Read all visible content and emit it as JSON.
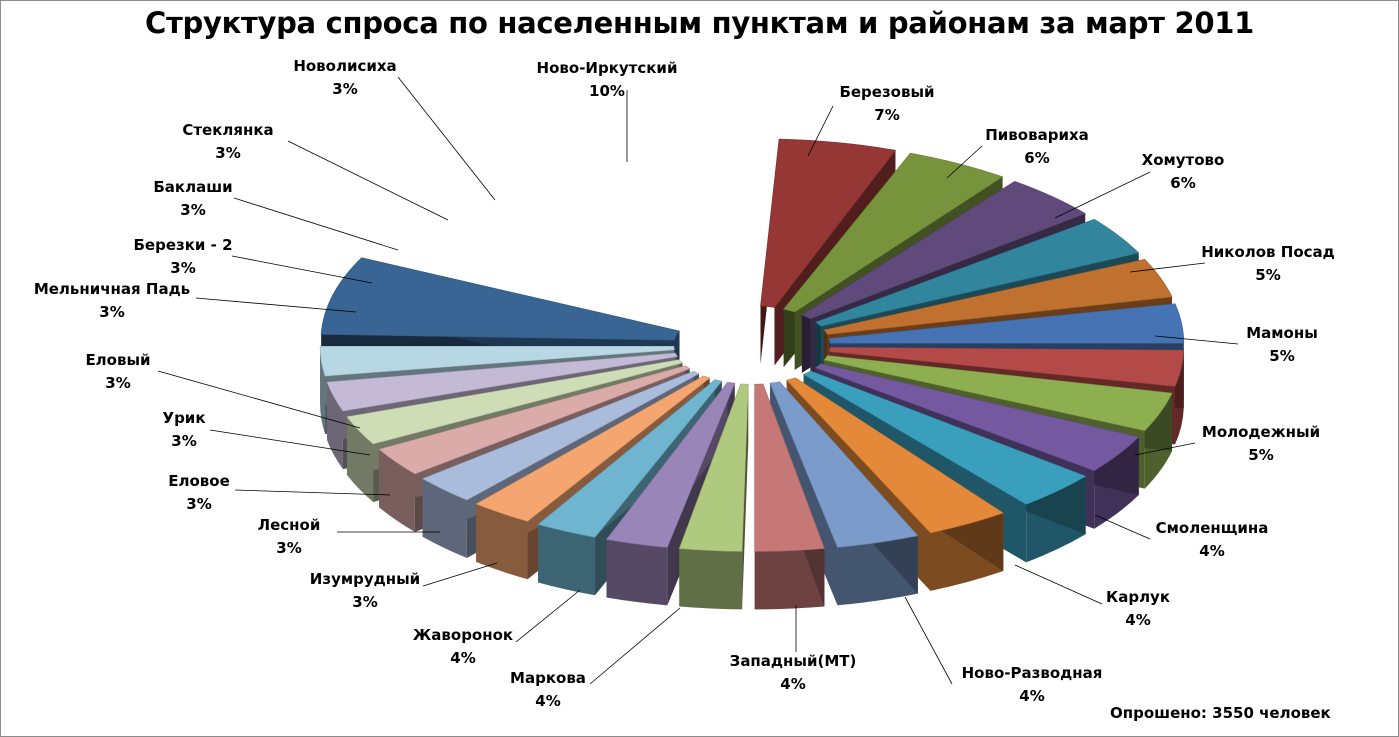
{
  "chart_data": {
    "type": "pie",
    "variant": "exploded-3d",
    "title": "Структура спроса по населенным пунктам и районам за март 2011",
    "note": "Опрошено: 3550 человек",
    "slices": [
      {
        "name": "Березовый",
        "label": "7%",
        "value": 7,
        "color": "#953735"
      },
      {
        "name": "Пивовариха",
        "label": "6%",
        "value": 6,
        "color": "#77933C"
      },
      {
        "name": "Хомутово",
        "label": "6%",
        "value": 6,
        "color": "#604A7B"
      },
      {
        "name": "Николов Посад",
        "label": "5%",
        "value": 5,
        "color": "#31859C"
      },
      {
        "name": "Мамоны",
        "label": "5%",
        "value": 5,
        "color": "#C0702F"
      },
      {
        "name": "Молодежный",
        "label": "5%",
        "value": 5,
        "color": "#4573B4"
      },
      {
        "name": "Смоленщина",
        "label": "4%",
        "value": 4,
        "color": "#B34A47"
      },
      {
        "name": "Карлук",
        "label": "4%",
        "value": 4,
        "color": "#8DAF50"
      },
      {
        "name": "Ново-Разводная",
        "label": "4%",
        "value": 4,
        "color": "#7459A0"
      },
      {
        "name": "Западный(МТ)",
        "label": "4%",
        "value": 4,
        "color": "#3A9FBD"
      },
      {
        "name": "Маркова",
        "label": "4%",
        "value": 4,
        "color": "#E4883A"
      },
      {
        "name": "Жаворонок",
        "label": "4%",
        "value": 4,
        "color": "#7B9BCB"
      },
      {
        "name": "Изумрудный",
        "label": "3%",
        "value": 3,
        "color": "#C67877"
      },
      {
        "name": "Лесной",
        "label": "3%",
        "value": 3,
        "color": "#AFC97E"
      },
      {
        "name": "Еловое",
        "label": "3%",
        "value": 3,
        "color": "#9A85B9"
      },
      {
        "name": "Урик",
        "label": "3%",
        "value": 3,
        "color": "#6FB5CF"
      },
      {
        "name": "Еловый",
        "label": "3%",
        "value": 3,
        "color": "#F5A56F"
      },
      {
        "name": "Мельничная Падь",
        "label": "3%",
        "value": 3,
        "color": "#A9BCDC"
      },
      {
        "name": "Березки - 2",
        "label": "3%",
        "value": 3,
        "color": "#DBABA9"
      },
      {
        "name": "Баклаши",
        "label": "3%",
        "value": 3,
        "color": "#CFDDB7"
      },
      {
        "name": "Стеклянка",
        "label": "3%",
        "value": 3,
        "color": "#C4BAD6"
      },
      {
        "name": "Новолисиха",
        "label": "3%",
        "value": 3,
        "color": "#B6D7E3"
      },
      {
        "name": "Ново-Иркутский",
        "label": "10%",
        "value": 10,
        "color": "#386593"
      }
    ]
  }
}
